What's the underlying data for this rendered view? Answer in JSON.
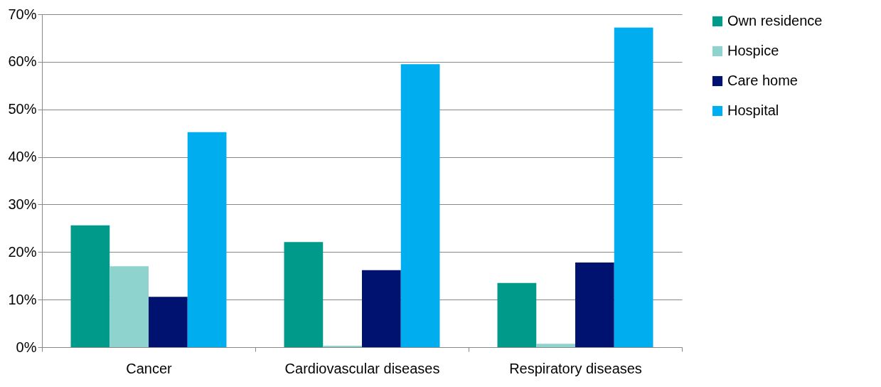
{
  "chart_data": {
    "type": "bar",
    "categories": [
      "Cancer",
      "Cardiovascular diseases",
      "Respiratory diseases"
    ],
    "series": [
      {
        "name": "Own residence",
        "color": "#009a8a",
        "values": [
          25.6,
          22.1,
          13.5
        ]
      },
      {
        "name": "Hospice",
        "color": "#8fd3cf",
        "values": [
          17.0,
          0.3,
          0.7
        ]
      },
      {
        "name": "Care home",
        "color": "#00126f",
        "values": [
          10.6,
          16.2,
          17.8
        ]
      },
      {
        "name": "Hospital",
        "color": "#00adef",
        "values": [
          45.2,
          59.5,
          67.2
        ]
      }
    ],
    "ylim": [
      0,
      70
    ],
    "yticks": [
      {
        "value": 0,
        "label": "0%"
      },
      {
        "value": 10,
        "label": "10%"
      },
      {
        "value": 20,
        "label": "20%"
      },
      {
        "value": 30,
        "label": "30%"
      },
      {
        "value": 40,
        "label": "40%"
      },
      {
        "value": 50,
        "label": "50%"
      },
      {
        "value": 60,
        "label": "60%"
      },
      {
        "value": 70,
        "label": "70%"
      }
    ],
    "grid": "y",
    "legend": "right"
  }
}
